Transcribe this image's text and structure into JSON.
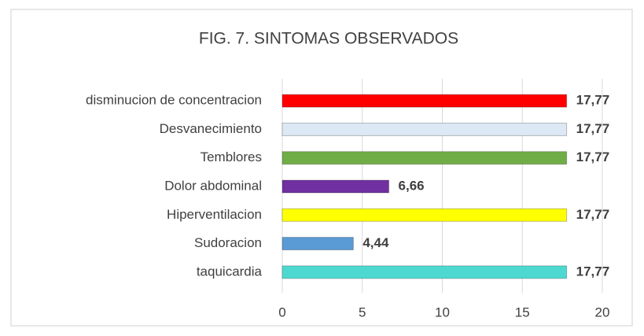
{
  "chart_data": {
    "type": "bar",
    "orientation": "horizontal",
    "title": "FIG. 7. SINTOMAS OBSERVADOS",
    "categories": [
      "disminucion de concentracion",
      "Desvanecimiento",
      "Temblores",
      "Dolor abdominal",
      "Hiperventilacion",
      "Sudoracion",
      "taquicardia"
    ],
    "values": [
      17.77,
      17.77,
      17.77,
      6.66,
      17.77,
      4.44,
      17.77
    ],
    "value_labels": [
      "17,77",
      "17,77",
      "17,77",
      "6,66",
      "17,77",
      "4,44",
      "17,77"
    ],
    "colors": [
      "#ff0000",
      "#dde8f5",
      "#70ad47",
      "#7030a0",
      "#ffff00",
      "#5b9bd5",
      "#4dd9d2"
    ],
    "xlim": [
      0,
      20
    ],
    "xticks": [
      0,
      5,
      10,
      15,
      20
    ],
    "grid": true
  }
}
